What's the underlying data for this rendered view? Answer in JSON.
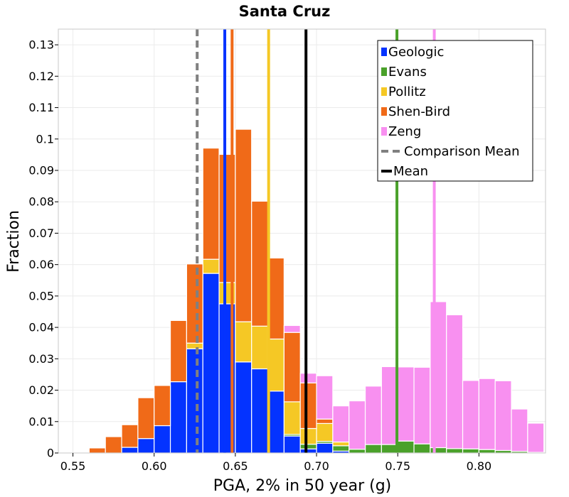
{
  "colors": {
    "geologic": "#0433ff",
    "evans": "#4aa12a",
    "pollitz": "#f5c825",
    "shenbird": "#f06a18",
    "zeng": "#f890f0",
    "comparison_mean": "#808080",
    "mean": "#000000",
    "grid": "#ebebeb",
    "frame": "#c8c8c8"
  },
  "chart_data": {
    "type": "bar",
    "stacked": true,
    "title": "Santa Cruz",
    "xlabel": "PGA, 2% in 50 year (g)",
    "ylabel": "Fraction",
    "xlim": [
      0.541,
      0.841
    ],
    "ylim": [
      0,
      0.135
    ],
    "xticks": [
      0.55,
      0.6,
      0.65,
      0.7,
      0.75,
      0.8
    ],
    "xtick_labels": [
      "0.55",
      "0.60",
      "0.65",
      "0.70",
      "0.75",
      "0.80"
    ],
    "yticks": [
      0,
      0.01,
      0.02,
      0.03,
      0.04,
      0.05,
      0.06,
      0.07,
      0.08,
      0.09,
      0.1,
      0.11,
      0.12,
      0.13
    ],
    "ytick_labels": [
      "0",
      "0.01",
      "0.02",
      "0.03",
      "0.04",
      "0.05",
      "0.06",
      "0.07",
      "0.08",
      "0.09",
      "0.1",
      "0.11",
      "0.12",
      "0.13"
    ],
    "bin_width": 0.01,
    "bin_starts": [
      0.55,
      0.56,
      0.57,
      0.58,
      0.59,
      0.6,
      0.61,
      0.62,
      0.63,
      0.64,
      0.65,
      0.66,
      0.67,
      0.68,
      0.69,
      0.7,
      0.71,
      0.72,
      0.73,
      0.74,
      0.75,
      0.76,
      0.77,
      0.78,
      0.79,
      0.8,
      0.81,
      0.82,
      0.83,
      0.84
    ],
    "series": [
      {
        "name": "Geologic",
        "color_key": "geologic",
        "values": [
          0,
          0,
          0,
          0.0018,
          0.0046,
          0.0087,
          0.0227,
          0.0332,
          0.0572,
          0.0475,
          0.029,
          0.0268,
          0.0197,
          0.0054,
          0.0013,
          0.0031,
          0.0006,
          0,
          0,
          0,
          0,
          0,
          0,
          0,
          0,
          0,
          0,
          0,
          0,
          0
        ]
      },
      {
        "name": "Evans",
        "color_key": "evans",
        "values": [
          0,
          0,
          0,
          0,
          0,
          0,
          0,
          0,
          0,
          0,
          0,
          0,
          0,
          0.0005,
          0.0015,
          0.0006,
          0.0017,
          0.0012,
          0.0027,
          0.0027,
          0.0038,
          0.0029,
          0.0017,
          0.0014,
          0.0013,
          0.0011,
          0.0008,
          0.0005,
          0.0002,
          0
        ]
      },
      {
        "name": "Pollitz",
        "color_key": "pollitz",
        "values": [
          0,
          0,
          0,
          0,
          0,
          0,
          0,
          0.0018,
          0.0045,
          0.0068,
          0.0128,
          0.0136,
          0.0166,
          0.0104,
          0.005,
          0.0057,
          0.0012,
          0,
          0,
          0,
          0,
          0,
          0,
          0,
          0,
          0,
          0,
          0,
          0,
          0
        ]
      },
      {
        "name": "Shen-Bird",
        "color_key": "shenbird",
        "values": [
          0,
          0.0016,
          0.0052,
          0.0072,
          0.013,
          0.0128,
          0.0195,
          0.0252,
          0.0354,
          0.0408,
          0.0613,
          0.0398,
          0.0258,
          0.0221,
          0.0145,
          0.0014,
          0,
          0,
          0,
          0,
          0,
          0,
          0,
          0,
          0,
          0,
          0,
          0,
          0,
          0
        ]
      },
      {
        "name": "Zeng",
        "color_key": "zeng",
        "values": [
          0,
          0,
          0,
          0,
          0,
          0,
          0,
          0,
          0,
          0,
          0,
          0,
          0,
          0.0022,
          0.0031,
          0.0138,
          0.0115,
          0.0154,
          0.0186,
          0.0248,
          0.0236,
          0.0244,
          0.0465,
          0.0426,
          0.0218,
          0.0226,
          0.0222,
          0.0135,
          0.0093,
          0
        ]
      }
    ],
    "vlines": [
      {
        "name": "Comparison Mean",
        "x": 0.6265,
        "style": "dashed",
        "color_key": "comparison_mean"
      },
      {
        "name": "Mean",
        "x": 0.6935,
        "style": "solid",
        "color_key": "mean"
      },
      {
        "name": "Geologic mean",
        "x": 0.6435,
        "style": "solid",
        "color_key": "geologic"
      },
      {
        "name": "Shen-Bird mean",
        "x": 0.648,
        "style": "solid",
        "color_key": "shenbird"
      },
      {
        "name": "Pollitz mean",
        "x": 0.6705,
        "style": "solid",
        "color_key": "pollitz"
      },
      {
        "name": "Evans mean",
        "x": 0.7495,
        "style": "solid",
        "color_key": "evans"
      },
      {
        "name": "Zeng mean",
        "x": 0.7725,
        "style": "solid",
        "color_key": "zeng"
      }
    ],
    "legend": {
      "position": "top-right",
      "entries": [
        {
          "label": "Geologic",
          "kind": "box",
          "color_key": "geologic"
        },
        {
          "label": "Evans",
          "kind": "box",
          "color_key": "evans"
        },
        {
          "label": "Pollitz",
          "kind": "box",
          "color_key": "pollitz"
        },
        {
          "label": "Shen-Bird",
          "kind": "box",
          "color_key": "shenbird"
        },
        {
          "label": "Zeng",
          "kind": "box",
          "color_key": "zeng"
        },
        {
          "label": "Comparison Mean",
          "kind": "dashed",
          "color_key": "comparison_mean"
        },
        {
          "label": "Mean",
          "kind": "solid",
          "color_key": "mean"
        }
      ]
    },
    "grid": true
  }
}
